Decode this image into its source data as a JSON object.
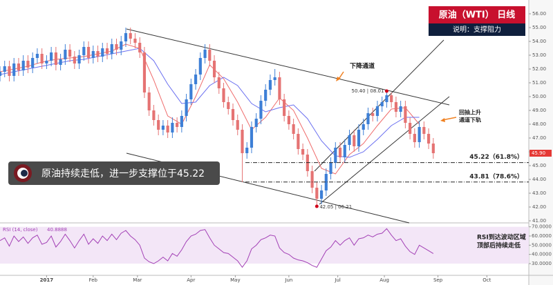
{
  "chart_data": {
    "type": "candlestick",
    "title": "原油（WTI） 日线",
    "subtitle": "说明：支撑阻力",
    "banner": "原油持续走低，进一步支撑位于45.22",
    "annotations": [
      "下降通道",
      "回抽上升",
      "通道下轨"
    ],
    "rsi_note": [
      "RSI到达波动区域",
      "顶部后持续走低"
    ],
    "xlim": [
      -20,
      207
    ],
    "ylim": [
      40.9,
      56.6
    ],
    "xticks": [
      {
        "value": 0,
        "label": "2017"
      },
      {
        "value": 20,
        "label": "Feb"
      },
      {
        "value": 39,
        "label": "Mar"
      },
      {
        "value": 62,
        "label": "Apr"
      },
      {
        "value": 81,
        "label": "May"
      },
      {
        "value": 104,
        "label": "Jun"
      },
      {
        "value": 125,
        "label": "Jul"
      },
      {
        "value": 145,
        "label": "Aug"
      },
      {
        "value": 168,
        "label": "Sep"
      },
      {
        "value": 189,
        "label": "Oct"
      }
    ],
    "yticks": [
      {
        "value": 56,
        "label": "56.00"
      },
      {
        "value": 55,
        "label": "55.00"
      },
      {
        "value": 54,
        "label": "54.00"
      },
      {
        "value": 53,
        "label": "53.00"
      },
      {
        "value": 52,
        "label": "52.00"
      },
      {
        "value": 51,
        "label": "51.00"
      },
      {
        "value": 50,
        "label": "50.00"
      },
      {
        "value": 49,
        "label": "49.00"
      },
      {
        "value": 48,
        "label": "48.00"
      },
      {
        "value": 47,
        "label": "47.00"
      },
      {
        "value": 46,
        "label": "46.00"
      },
      {
        "value": 45,
        "label": "45.00"
      },
      {
        "value": 44,
        "label": "44.00"
      },
      {
        "value": 43,
        "label": "43.00"
      },
      {
        "value": 42,
        "label": "42.00"
      },
      {
        "value": 41,
        "label": "41.00"
      }
    ],
    "up_color": "#3d7fd6",
    "down_color": "#e57373",
    "candles": {
      "x": [
        -20,
        -18,
        -16,
        -14,
        -12,
        -10,
        -8,
        -6,
        -4,
        -2,
        0,
        2,
        4,
        6,
        8,
        10,
        12,
        14,
        16,
        18,
        20,
        22,
        24,
        26,
        28,
        30,
        32,
        34,
        36,
        38,
        40,
        42,
        44,
        46,
        48,
        50,
        52,
        54,
        56,
        58,
        60,
        62,
        64,
        66,
        68,
        70,
        72,
        74,
        76,
        78,
        80,
        82,
        84,
        86,
        88,
        90,
        92,
        94,
        96,
        98,
        100,
        102,
        104,
        106,
        108,
        110,
        112,
        114,
        116,
        118,
        120,
        122,
        124,
        126,
        128,
        130,
        132,
        134,
        136,
        138,
        140,
        142,
        144,
        146,
        148,
        150,
        152,
        154,
        156,
        158,
        160,
        162,
        164,
        166
      ],
      "open": [
        51.5,
        51.8,
        52.2,
        51.5,
        52.4,
        51.9,
        52.6,
        52.1,
        52.8,
        53.1,
        52.4,
        52.6,
        53.2,
        52.3,
        52.7,
        53.4,
        52.9,
        52.4,
        53.0,
        53.6,
        52.8,
        53.3,
        52.9,
        53.5,
        53.1,
        53.8,
        53.4,
        54.0,
        54.6,
        54.2,
        53.9,
        53.2,
        50.3,
        49.0,
        48.3,
        47.6,
        47.9,
        47.4,
        48.1,
        47.8,
        48.6,
        49.8,
        50.9,
        51.6,
        52.8,
        53.4,
        52.6,
        51.4,
        50.6,
        49.6,
        49.1,
        48.3,
        47.6,
        45.9,
        46.3,
        47.8,
        48.4,
        49.7,
        50.5,
        51.2,
        51.4,
        49.8,
        48.6,
        48.0,
        47.3,
        46.2,
        45.8,
        44.6,
        43.4,
        42.6,
        43.2,
        44.4,
        45.2,
        46.3,
        45.6,
        46.5,
        47.2,
        46.4,
        47.6,
        48.0,
        48.8,
        48.6,
        49.3,
        49.6,
        50.1,
        49.6,
        48.9,
        49.3,
        48.1,
        47.3,
        46.7,
        47.8,
        47.3,
        46.6
      ],
      "high": [
        52.2,
        52.6,
        52.6,
        52.8,
        52.8,
        53.0,
        53.0,
        53.2,
        53.5,
        53.5,
        53.0,
        53.6,
        53.6,
        53.1,
        53.8,
        53.8,
        53.3,
        53.4,
        54.0,
        54.0,
        53.7,
        53.7,
        53.9,
        53.9,
        54.2,
        54.2,
        54.4,
        55.0,
        55.0,
        54.6,
        54.3,
        53.6,
        50.7,
        49.4,
        48.7,
        48.3,
        48.3,
        48.5,
        48.5,
        49.0,
        50.2,
        51.3,
        52.0,
        53.2,
        53.8,
        53.8,
        53.0,
        51.8,
        51.0,
        50.0,
        49.5,
        48.7,
        48.0,
        46.7,
        48.2,
        48.8,
        50.1,
        50.9,
        51.6,
        52.0,
        51.8,
        50.2,
        49.0,
        48.4,
        47.7,
        46.6,
        46.2,
        45.0,
        43.8,
        43.6,
        44.8,
        45.6,
        46.7,
        46.7,
        46.9,
        47.6,
        47.6,
        48.0,
        48.4,
        49.2,
        49.2,
        49.7,
        50.0,
        50.4,
        50.3,
        50.0,
        49.7,
        49.7,
        48.5,
        47.7,
        48.2,
        48.2,
        47.7,
        47.0
      ],
      "low": [
        51.1,
        51.4,
        51.1,
        51.1,
        51.5,
        51.5,
        51.7,
        51.7,
        52.4,
        52.0,
        52.0,
        52.2,
        51.9,
        51.9,
        52.3,
        52.5,
        52.0,
        52.0,
        52.6,
        52.4,
        52.4,
        52.5,
        52.5,
        52.7,
        52.7,
        53.0,
        53.0,
        53.6,
        53.8,
        53.5,
        52.8,
        49.9,
        48.6,
        47.9,
        47.2,
        47.2,
        47.0,
        47.0,
        47.4,
        47.4,
        48.2,
        49.4,
        50.5,
        51.2,
        52.4,
        52.2,
        51.0,
        50.2,
        49.2,
        48.7,
        47.9,
        47.2,
        43.8,
        45.5,
        45.9,
        47.4,
        48.0,
        49.3,
        50.1,
        50.8,
        49.4,
        48.2,
        47.6,
        46.9,
        45.8,
        45.4,
        44.2,
        43.0,
        42.05,
        42.2,
        42.8,
        44.0,
        44.8,
        45.2,
        45.2,
        46.1,
        46.0,
        46.0,
        47.2,
        47.6,
        48.2,
        48.2,
        48.9,
        49.2,
        49.2,
        48.5,
        48.5,
        47.7,
        46.9,
        46.3,
        46.3,
        46.9,
        46.2,
        45.5
      ],
      "close": [
        51.8,
        52.2,
        51.5,
        52.4,
        51.9,
        52.6,
        52.1,
        52.8,
        53.1,
        52.4,
        52.6,
        53.2,
        52.3,
        52.7,
        53.4,
        52.9,
        52.4,
        53.0,
        53.6,
        52.8,
        53.3,
        52.9,
        53.5,
        53.1,
        53.8,
        53.4,
        54.0,
        54.6,
        54.2,
        53.9,
        53.2,
        50.3,
        49.0,
        48.3,
        47.6,
        47.9,
        47.4,
        48.1,
        47.8,
        48.6,
        49.8,
        50.9,
        51.6,
        52.8,
        53.4,
        52.6,
        51.4,
        50.6,
        49.6,
        49.1,
        48.3,
        47.6,
        45.9,
        46.3,
        47.8,
        48.4,
        49.7,
        50.5,
        51.2,
        51.4,
        49.8,
        48.6,
        48.0,
        47.3,
        46.2,
        45.8,
        44.6,
        43.4,
        42.6,
        43.2,
        44.4,
        45.2,
        46.3,
        45.6,
        46.5,
        47.2,
        46.4,
        47.6,
        48.0,
        48.8,
        48.6,
        49.3,
        49.6,
        50.1,
        49.6,
        48.9,
        49.3,
        48.1,
        47.3,
        46.7,
        47.8,
        47.3,
        46.6,
        45.9
      ]
    },
    "moving_averages": [
      {
        "color": "#ef6c6c",
        "x": [
          -20,
          -14,
          -8,
          -2,
          4,
          10,
          16,
          22,
          28,
          34,
          40,
          46,
          52,
          58,
          64,
          70,
          76,
          82,
          88,
          94,
          100,
          106,
          112,
          118,
          124,
          130,
          136,
          142,
          148,
          154,
          160
        ],
        "values": [
          51.8,
          52.0,
          52.2,
          52.5,
          52.7,
          52.8,
          52.9,
          53.1,
          53.3,
          53.8,
          53.5,
          51.2,
          48.6,
          48.0,
          50.0,
          52.3,
          51.3,
          49.6,
          47.6,
          48.5,
          49.9,
          49.0,
          47.0,
          44.8,
          44.4,
          45.8,
          46.6,
          47.9,
          49.1,
          49.2,
          48.0
        ]
      },
      {
        "color": "#6a6ff0",
        "x": [
          -20,
          -14,
          -8,
          -2,
          4,
          10,
          16,
          22,
          28,
          34,
          40,
          46,
          52,
          58,
          64,
          70,
          76,
          82,
          88,
          94,
          100,
          106,
          112,
          118,
          124,
          130,
          136,
          142,
          148,
          154,
          160
        ],
        "values": [
          51.6,
          51.8,
          52.0,
          52.2,
          52.4,
          52.6,
          52.7,
          52.9,
          53.1,
          53.3,
          53.5,
          52.6,
          50.9,
          49.5,
          49.6,
          50.8,
          51.4,
          50.8,
          49.5,
          48.9,
          49.2,
          49.4,
          48.4,
          46.8,
          45.7,
          45.6,
          46.0,
          46.9,
          47.9,
          48.5,
          48.5
        ]
      }
    ],
    "levels": [
      {
        "value": 45.22,
        "label": "45.22（61.8%）"
      },
      {
        "value": 43.81,
        "label": "43.81（78.6%）"
      }
    ],
    "markers": [
      {
        "x": 146,
        "value": 50.4,
        "label": "50.40 | 08.01"
      },
      {
        "x": 116,
        "value": 42.05,
        "label": "42.05 | 06.21"
      }
    ],
    "current_price": {
      "value": 45.9,
      "label": "45.90"
    },
    "rsi": {
      "name": "RSI (14, close)",
      "color": "#a23fb5",
      "ylim": [
        18,
        72
      ],
      "yticks": [
        {
          "value": 70,
          "label": "70.0000"
        },
        {
          "value": 60,
          "label": "60.0000"
        },
        {
          "value": 50,
          "label": "50.0000"
        },
        {
          "value": 40,
          "label": "40.0000"
        },
        {
          "value": 30,
          "label": "30.0000"
        }
      ],
      "band": [
        30,
        70
      ],
      "values": [
        55,
        58,
        49,
        60,
        54,
        59,
        52,
        58,
        61,
        51,
        53,
        60,
        48,
        54,
        62,
        55,
        47,
        55,
        62,
        51,
        57,
        52,
        60,
        55,
        62,
        56,
        63,
        66,
        60,
        56,
        50,
        36,
        32,
        30,
        33,
        37,
        33,
        41,
        38,
        45,
        54,
        60,
        62,
        66,
        67,
        58,
        50,
        46,
        42,
        41,
        37,
        33,
        26,
        33,
        46,
        50,
        56,
        58,
        61,
        60,
        47,
        42,
        40,
        36,
        34,
        33,
        31,
        28,
        26,
        35,
        44,
        48,
        55,
        50,
        55,
        58,
        50,
        57,
        58,
        61,
        59,
        62,
        63,
        68,
        61,
        55,
        57,
        49,
        43,
        40,
        50,
        47,
        44,
        40.8888
      ]
    }
  }
}
